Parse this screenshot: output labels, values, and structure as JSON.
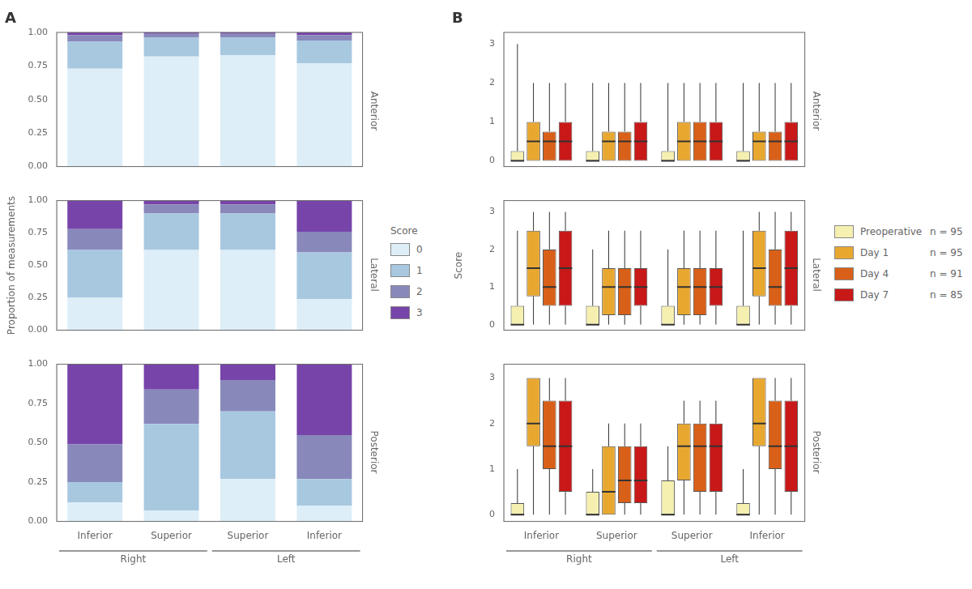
{
  "chart_data": [
    {
      "type": "bar",
      "stacked": true,
      "title": "Anterior",
      "annotations": [
        {
          "text": "A"
        }
      ],
      "categories": [
        null,
        null,
        null,
        null
      ],
      "series": [
        {
          "name": "0",
          "color": "#ddeef8",
          "values": [
            0.73,
            0.82,
            0.83,
            0.77
          ]
        },
        {
          "name": "1",
          "color": "#a8c8e0",
          "values": [
            0.2,
            0.14,
            0.13,
            0.17
          ]
        },
        {
          "name": "2",
          "color": "#8888bb",
          "values": [
            0.05,
            0.03,
            0.03,
            0.04
          ]
        },
        {
          "name": "3",
          "color": "#7744aa",
          "values": [
            0.02,
            0.01,
            0.01,
            0.02
          ]
        }
      ],
      "ylim": [
        0,
        1.0
      ],
      "yticks": [
        {
          "value": 0,
          "label": "0.00"
        },
        {
          "value": 0.25,
          "label": "0.25"
        },
        {
          "value": 0.5,
          "label": "0.50"
        },
        {
          "value": 0.75,
          "label": "0.75"
        },
        {
          "value": 1.0,
          "label": "1.00"
        }
      ],
      "grid": false,
      "legend": false
    },
    {
      "type": "bar",
      "stacked": true,
      "title": "Lateral",
      "y_label": "Proportion of measurements",
      "categories": [
        null,
        null,
        null,
        null
      ],
      "series": [
        {
          "name": "0",
          "color": "#ddeef8",
          "values": [
            0.25,
            0.62,
            0.62,
            0.24
          ]
        },
        {
          "name": "1",
          "color": "#a8c8e0",
          "values": [
            0.37,
            0.28,
            0.28,
            0.36
          ]
        },
        {
          "name": "2",
          "color": "#8888bb",
          "values": [
            0.16,
            0.07,
            0.07,
            0.16
          ]
        },
        {
          "name": "3",
          "color": "#7744aa",
          "values": [
            0.22,
            0.03,
            0.03,
            0.24
          ]
        }
      ],
      "ylim": [
        0,
        1.0
      ],
      "yticks": [
        {
          "value": 0,
          "label": "0.00"
        },
        {
          "value": 0.25,
          "label": "0.25"
        },
        {
          "value": 0.5,
          "label": "0.50"
        },
        {
          "value": 0.75,
          "label": "0.75"
        },
        {
          "value": 1.0,
          "label": "1.00"
        }
      ],
      "grid": false,
      "legend": "right",
      "legend_title": "Score"
    },
    {
      "type": "bar",
      "stacked": true,
      "title": "Posterior",
      "categories": [
        "Inferior",
        "Superior",
        "Superior",
        "Inferior"
      ],
      "x_groups": [
        "Right",
        "Left"
      ],
      "series": [
        {
          "name": "0",
          "color": "#ddeef8",
          "values": [
            0.12,
            0.07,
            0.27,
            0.1
          ]
        },
        {
          "name": "1",
          "color": "#a8c8e0",
          "values": [
            0.13,
            0.55,
            0.43,
            0.17
          ]
        },
        {
          "name": "2",
          "color": "#8888bb",
          "values": [
            0.24,
            0.22,
            0.2,
            0.28
          ]
        },
        {
          "name": "3",
          "color": "#7744aa",
          "values": [
            0.51,
            0.16,
            0.1,
            0.45
          ]
        }
      ],
      "ylim": [
        0,
        1.0
      ],
      "yticks": [
        {
          "value": 0,
          "label": "0.00"
        },
        {
          "value": 0.25,
          "label": "0.25"
        },
        {
          "value": 0.5,
          "label": "0.50"
        },
        {
          "value": 0.75,
          "label": "0.75"
        },
        {
          "value": 1.0,
          "label": "1.00"
        }
      ],
      "grid": false,
      "legend": false
    },
    {
      "type": "boxplot",
      "title": "Anterior",
      "annotations": [
        {
          "text": "B"
        }
      ],
      "categories": [
        null,
        null,
        null,
        null
      ],
      "series": [
        {
          "name": "Preoperative",
          "n_label": "n = 95",
          "color": "#f5f0b0",
          "values": [
            [
              0,
              0,
              0,
              0.25,
              3.0
            ],
            [
              0,
              0,
              0,
              0.25,
              2.0
            ],
            [
              0,
              0,
              0,
              0.25,
              2.0
            ],
            [
              0,
              0,
              0,
              0.25,
              2.0
            ]
          ]
        },
        {
          "name": "Day 1",
          "n_label": "n = 95",
          "color": "#e8a830",
          "values": [
            [
              0,
              0,
              0.5,
              1.0,
              2.0
            ],
            [
              0,
              0,
              0.5,
              0.75,
              2.0
            ],
            [
              0,
              0,
              0.5,
              1.0,
              2.0
            ],
            [
              0,
              0,
              0.5,
              0.75,
              2.0
            ]
          ]
        },
        {
          "name": "Day 4",
          "n_label": "n = 91",
          "color": "#d96018",
          "values": [
            [
              0,
              0,
              0.5,
              0.75,
              2.0
            ],
            [
              0,
              0,
              0.5,
              0.75,
              2.0
            ],
            [
              0,
              0,
              0.5,
              1.0,
              2.0
            ],
            [
              0,
              0,
              0.5,
              0.75,
              2.0
            ]
          ]
        },
        {
          "name": "Day 7",
          "n_label": "n = 85",
          "color": "#c81818",
          "values": [
            [
              0,
              0,
              0.5,
              1.0,
              2.0
            ],
            [
              0,
              0,
              0.5,
              1.0,
              2.0
            ],
            [
              0,
              0,
              0.5,
              1.0,
              2.0
            ],
            [
              0,
              0,
              0.5,
              1.0,
              2.0
            ]
          ]
        }
      ],
      "ylim": [
        -0.15,
        3.3
      ],
      "yticks": [
        0,
        1,
        2,
        3
      ],
      "grid": false,
      "legend": false
    },
    {
      "type": "boxplot",
      "title": "Lateral",
      "y_label": "Score",
      "categories": [
        null,
        null,
        null,
        null
      ],
      "series": [
        {
          "name": "Preoperative",
          "n_label": "n = 95",
          "color": "#f5f0b0",
          "values": [
            [
              0,
              0,
              0,
              0.5,
              2.5
            ],
            [
              0,
              0,
              0,
              0.5,
              2.0
            ],
            [
              0,
              0,
              0,
              0.5,
              2.0
            ],
            [
              0,
              0,
              0,
              0.5,
              2.5
            ]
          ]
        },
        {
          "name": "Day 1",
          "n_label": "n = 95",
          "color": "#e8a830",
          "values": [
            [
              0,
              0.75,
              1.5,
              2.5,
              3.0
            ],
            [
              0,
              0.25,
              1.0,
              1.5,
              2.5
            ],
            [
              0,
              0.25,
              1.0,
              1.5,
              2.5
            ],
            [
              0,
              0.75,
              1.5,
              2.5,
              3.0
            ]
          ]
        },
        {
          "name": "Day 4",
          "n_label": "n = 91",
          "color": "#d96018",
          "values": [
            [
              0,
              0.5,
              1.0,
              2.0,
              3.0
            ],
            [
              0,
              0.25,
              1.0,
              1.5,
              2.5
            ],
            [
              0,
              0.25,
              1.0,
              1.5,
              2.5
            ],
            [
              0,
              0.5,
              1.0,
              2.0,
              3.0
            ]
          ]
        },
        {
          "name": "Day 7",
          "n_label": "n = 85",
          "color": "#c81818",
          "values": [
            [
              0,
              0.5,
              1.5,
              2.5,
              3.0
            ],
            [
              0,
              0.5,
              1.0,
              1.5,
              2.5
            ],
            [
              0,
              0.5,
              1.0,
              1.5,
              2.5
            ],
            [
              0,
              0.5,
              1.5,
              2.5,
              3.0
            ]
          ]
        }
      ],
      "ylim": [
        -0.15,
        3.3
      ],
      "yticks": [
        0,
        1,
        2,
        3
      ],
      "grid": false,
      "legend": "right"
    },
    {
      "type": "boxplot",
      "title": "Posterior",
      "categories": [
        "Inferior",
        "Superior",
        "Superior",
        "Inferior"
      ],
      "x_groups": [
        "Right",
        "Left"
      ],
      "series": [
        {
          "name": "Preoperative",
          "n_label": "n = 95",
          "color": "#f5f0b0",
          "values": [
            [
              0,
              0,
              0,
              0.25,
              1.0
            ],
            [
              0,
              0,
              0,
              0.5,
              1.0
            ],
            [
              0,
              0,
              0,
              0.75,
              1.5
            ],
            [
              0,
              0,
              0,
              0.25,
              1.0
            ]
          ]
        },
        {
          "name": "Day 1",
          "n_label": "n = 95",
          "color": "#e8a830",
          "values": [
            [
              0,
              1.5,
              2.0,
              3.0,
              3.0
            ],
            [
              0,
              0,
              0.5,
              1.5,
              2.0
            ],
            [
              0,
              0.75,
              1.5,
              2.0,
              2.5
            ],
            [
              0,
              1.5,
              2.0,
              3.0,
              3.0
            ]
          ]
        },
        {
          "name": "Day 4",
          "n_label": "n = 91",
          "color": "#d96018",
          "values": [
            [
              0,
              1.0,
              1.5,
              2.5,
              3.0
            ],
            [
              0,
              0.25,
              0.75,
              1.5,
              2.0
            ],
            [
              0,
              0.5,
              1.5,
              2.0,
              2.5
            ],
            [
              0,
              1.0,
              1.5,
              2.5,
              3.0
            ]
          ]
        },
        {
          "name": "Day 7",
          "n_label": "n = 85",
          "color": "#c81818",
          "values": [
            [
              0,
              0.5,
              1.5,
              2.5,
              3.0
            ],
            [
              0,
              0.25,
              0.75,
              1.5,
              2.0
            ],
            [
              0,
              0.5,
              1.5,
              2.0,
              2.5
            ],
            [
              0,
              0.5,
              1.5,
              2.5,
              3.0
            ]
          ]
        }
      ],
      "ylim": [
        -0.15,
        3.3
      ],
      "yticks": [
        0,
        1,
        2,
        3
      ],
      "grid": false,
      "legend": false
    }
  ]
}
